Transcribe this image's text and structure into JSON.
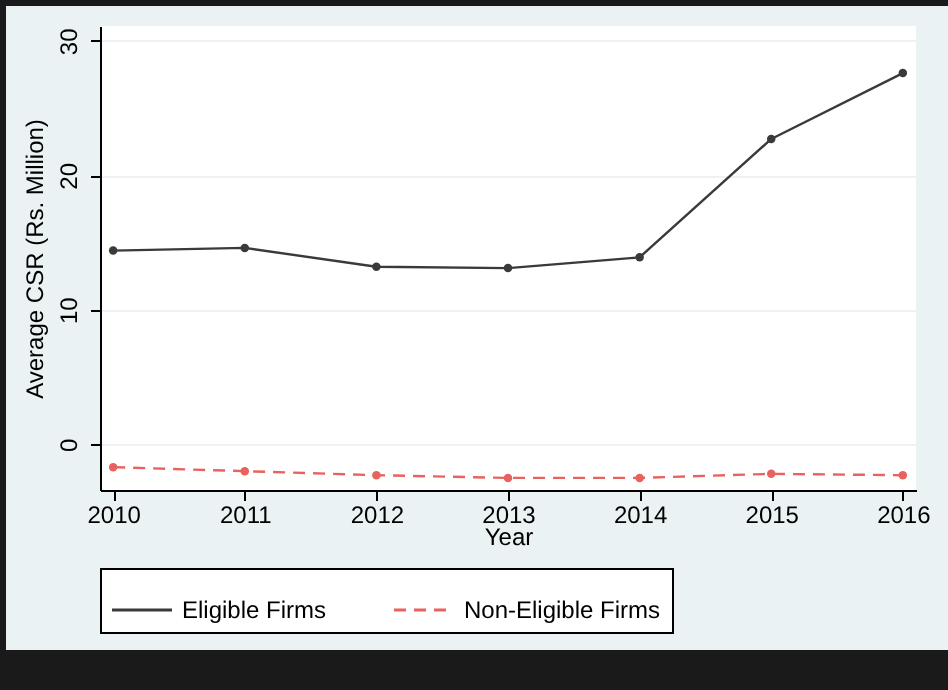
{
  "chart_data": {
    "type": "line",
    "xlabel": "Year",
    "ylabel": "Average CSR (Rs. Million)",
    "x": [
      2010,
      2011,
      2012,
      2013,
      2014,
      2015,
      2016
    ],
    "series": [
      {
        "name": "Eligible Firms",
        "color": "#3a3a3a",
        "line_style": "solid",
        "values": [
          14.4,
          14.6,
          13.2,
          13.1,
          13.9,
          22.7,
          27.6
        ]
      },
      {
        "name": "Non-Eligible Firms",
        "color": "#e8635f",
        "line_style": "dashed",
        "values": [
          -1.7,
          -2.0,
          -2.3,
          -2.5,
          -2.5,
          -2.2,
          -2.3
        ]
      }
    ],
    "xlim": [
      2009.9,
      2016.1
    ],
    "xticks": [
      2010,
      2011,
      2012,
      2013,
      2014,
      2015,
      2016
    ],
    "ylim": [
      -3.4,
      31.1
    ],
    "yticks": [
      0,
      10,
      20,
      30
    ],
    "grid": "y",
    "legend": "bottom",
    "marker": "circle"
  }
}
